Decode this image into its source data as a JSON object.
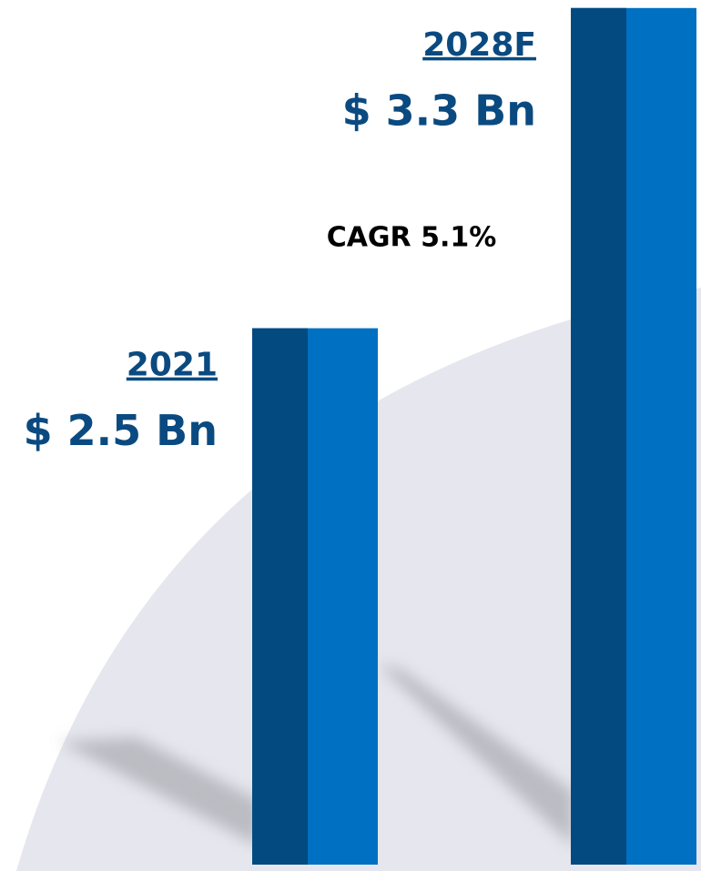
{
  "chart_data": {
    "type": "bar",
    "categories": [
      "2021",
      "2028F"
    ],
    "values": [
      2.5,
      3.3
    ],
    "value_labels": [
      "$ 2.5 Bn",
      "$ 3.3 Bn"
    ],
    "annotation": "CAGR 5.1%",
    "colors": [
      "#034a80",
      "#0070c2"
    ],
    "ylim": [
      1.16,
      3.32
    ]
  }
}
